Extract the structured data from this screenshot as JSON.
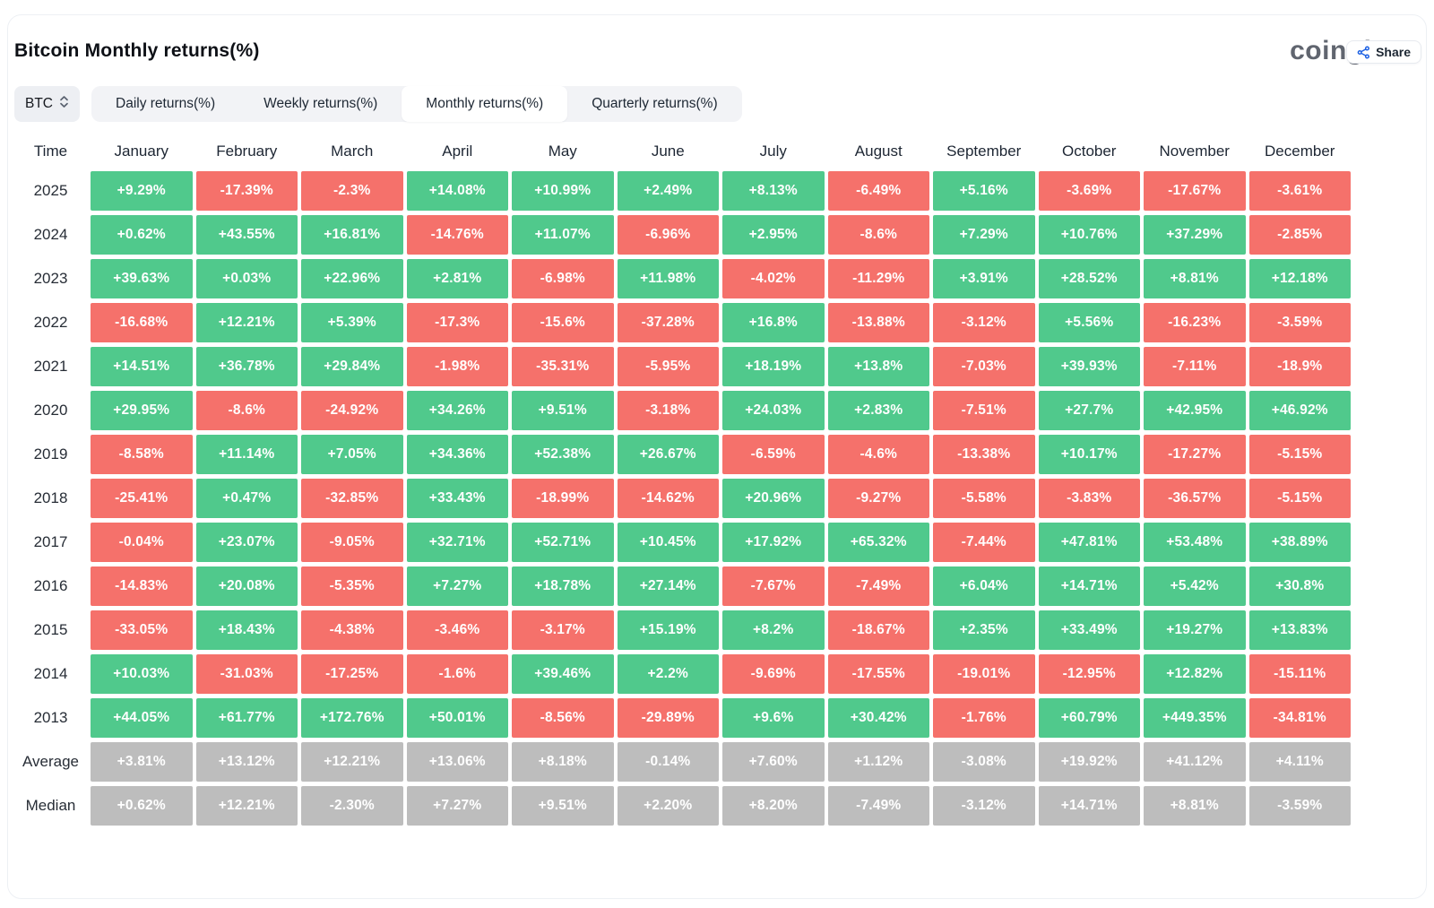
{
  "share": {
    "label": "Share"
  },
  "header": {
    "title": "Bitcoin Monthly returns(%)",
    "logo": "coinglass"
  },
  "controls": {
    "coin_selector": {
      "value": "BTC"
    },
    "tabs": [
      {
        "label": "Daily returns(%)",
        "active": false
      },
      {
        "label": "Weekly returns(%)",
        "active": false
      },
      {
        "label": "Monthly returns(%)",
        "active": true
      },
      {
        "label": "Quarterly returns(%)",
        "active": false
      }
    ]
  },
  "colors": {
    "positive": "#50c98c",
    "negative": "#f5716b",
    "neutral": "#bdbdbd",
    "accent_blue": "#1d61e3"
  },
  "table": {
    "columns": [
      "Time",
      "January",
      "February",
      "March",
      "April",
      "May",
      "June",
      "July",
      "August",
      "September",
      "October",
      "November",
      "December"
    ],
    "rows": [
      {
        "label": "2025",
        "summary": false,
        "values": [
          "+9.29%",
          "-17.39%",
          "-2.3%",
          "+14.08%",
          "+10.99%",
          "+2.49%",
          "+8.13%",
          "-6.49%",
          "+5.16%",
          "-3.69%",
          "-17.67%",
          "-3.61%"
        ]
      },
      {
        "label": "2024",
        "summary": false,
        "values": [
          "+0.62%",
          "+43.55%",
          "+16.81%",
          "-14.76%",
          "+11.07%",
          "-6.96%",
          "+2.95%",
          "-8.6%",
          "+7.29%",
          "+10.76%",
          "+37.29%",
          "-2.85%"
        ]
      },
      {
        "label": "2023",
        "summary": false,
        "values": [
          "+39.63%",
          "+0.03%",
          "+22.96%",
          "+2.81%",
          "-6.98%",
          "+11.98%",
          "-4.02%",
          "-11.29%",
          "+3.91%",
          "+28.52%",
          "+8.81%",
          "+12.18%"
        ]
      },
      {
        "label": "2022",
        "summary": false,
        "values": [
          "-16.68%",
          "+12.21%",
          "+5.39%",
          "-17.3%",
          "-15.6%",
          "-37.28%",
          "+16.8%",
          "-13.88%",
          "-3.12%",
          "+5.56%",
          "-16.23%",
          "-3.59%"
        ]
      },
      {
        "label": "2021",
        "summary": false,
        "values": [
          "+14.51%",
          "+36.78%",
          "+29.84%",
          "-1.98%",
          "-35.31%",
          "-5.95%",
          "+18.19%",
          "+13.8%",
          "-7.03%",
          "+39.93%",
          "-7.11%",
          "-18.9%"
        ]
      },
      {
        "label": "2020",
        "summary": false,
        "values": [
          "+29.95%",
          "-8.6%",
          "-24.92%",
          "+34.26%",
          "+9.51%",
          "-3.18%",
          "+24.03%",
          "+2.83%",
          "-7.51%",
          "+27.7%",
          "+42.95%",
          "+46.92%"
        ]
      },
      {
        "label": "2019",
        "summary": false,
        "values": [
          "-8.58%",
          "+11.14%",
          "+7.05%",
          "+34.36%",
          "+52.38%",
          "+26.67%",
          "-6.59%",
          "-4.6%",
          "-13.38%",
          "+10.17%",
          "-17.27%",
          "-5.15%"
        ]
      },
      {
        "label": "2018",
        "summary": false,
        "values": [
          "-25.41%",
          "+0.47%",
          "-32.85%",
          "+33.43%",
          "-18.99%",
          "-14.62%",
          "+20.96%",
          "-9.27%",
          "-5.58%",
          "-3.83%",
          "-36.57%",
          "-5.15%"
        ]
      },
      {
        "label": "2017",
        "summary": false,
        "values": [
          "-0.04%",
          "+23.07%",
          "-9.05%",
          "+32.71%",
          "+52.71%",
          "+10.45%",
          "+17.92%",
          "+65.32%",
          "-7.44%",
          "+47.81%",
          "+53.48%",
          "+38.89%"
        ]
      },
      {
        "label": "2016",
        "summary": false,
        "values": [
          "-14.83%",
          "+20.08%",
          "-5.35%",
          "+7.27%",
          "+18.78%",
          "+27.14%",
          "-7.67%",
          "-7.49%",
          "+6.04%",
          "+14.71%",
          "+5.42%",
          "+30.8%"
        ]
      },
      {
        "label": "2015",
        "summary": false,
        "values": [
          "-33.05%",
          "+18.43%",
          "-4.38%",
          "-3.46%",
          "-3.17%",
          "+15.19%",
          "+8.2%",
          "-18.67%",
          "+2.35%",
          "+33.49%",
          "+19.27%",
          "+13.83%"
        ]
      },
      {
        "label": "2014",
        "summary": false,
        "values": [
          "+10.03%",
          "-31.03%",
          "-17.25%",
          "-1.6%",
          "+39.46%",
          "+2.2%",
          "-9.69%",
          "-17.55%",
          "-19.01%",
          "-12.95%",
          "+12.82%",
          "-15.11%"
        ]
      },
      {
        "label": "2013",
        "summary": false,
        "values": [
          "+44.05%",
          "+61.77%",
          "+172.76%",
          "+50.01%",
          "-8.56%",
          "-29.89%",
          "+9.6%",
          "+30.42%",
          "-1.76%",
          "+60.79%",
          "+449.35%",
          "-34.81%"
        ]
      },
      {
        "label": "Average",
        "summary": true,
        "values": [
          "+3.81%",
          "+13.12%",
          "+12.21%",
          "+13.06%",
          "+8.18%",
          "-0.14%",
          "+7.60%",
          "+1.12%",
          "-3.08%",
          "+19.92%",
          "+41.12%",
          "+4.11%"
        ]
      },
      {
        "label": "Median",
        "summary": true,
        "values": [
          "+0.62%",
          "+12.21%",
          "-2.30%",
          "+7.27%",
          "+9.51%",
          "+2.20%",
          "+8.20%",
          "-7.49%",
          "-3.12%",
          "+14.71%",
          "+8.81%",
          "-3.59%"
        ]
      }
    ]
  }
}
